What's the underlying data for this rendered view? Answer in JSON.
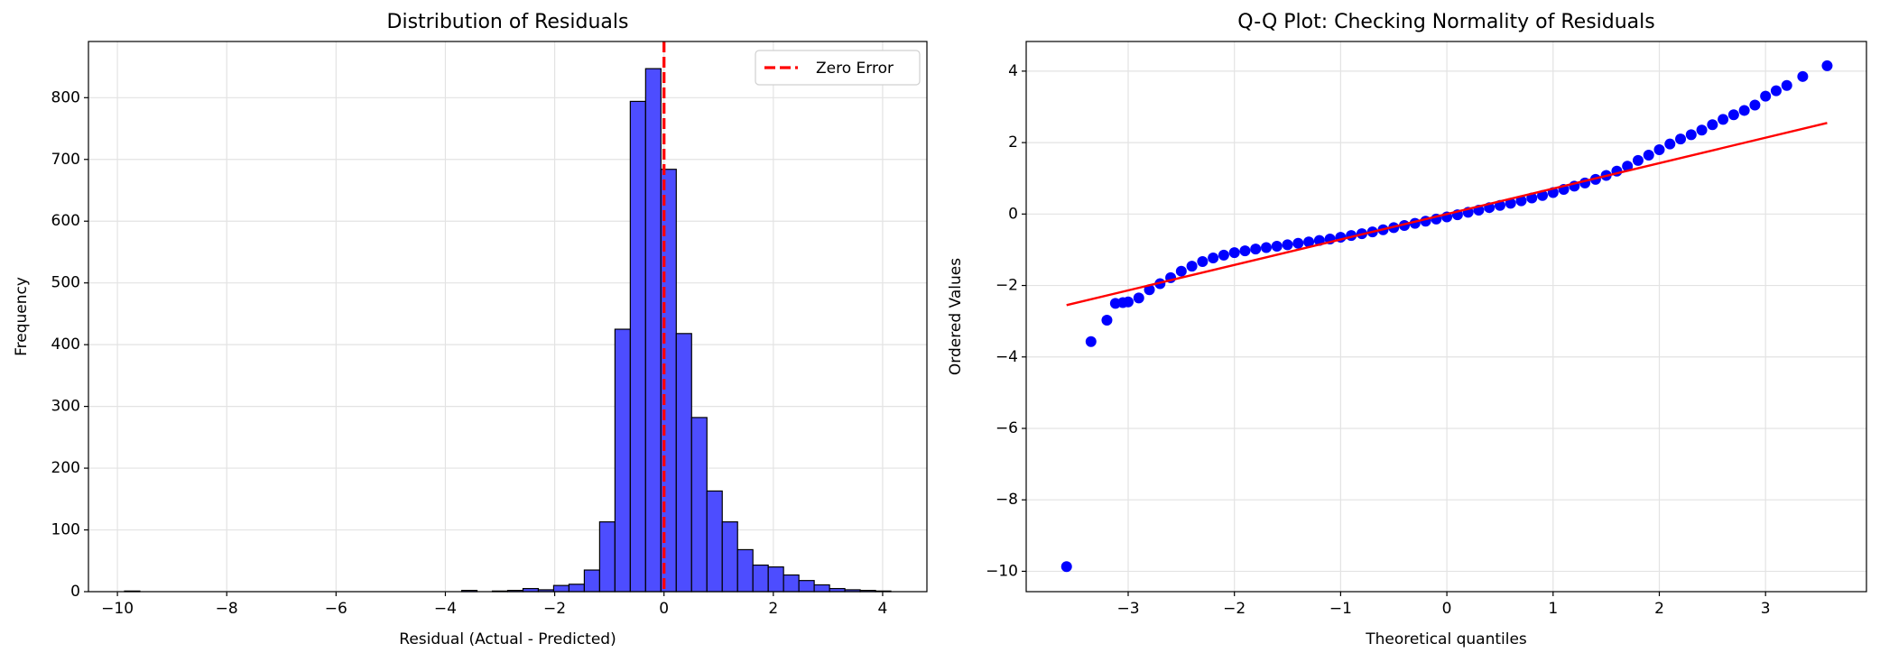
{
  "chart_data": [
    {
      "type": "histogram",
      "title": "Distribution of Residuals",
      "xlabel": "Residual (Actual - Predicted)",
      "ylabel": "Frequency",
      "bins": [
        -9.87,
        -9.5896,
        -9.3092,
        -9.0288,
        -8.7484,
        -8.468,
        -8.1876,
        -7.9072,
        -7.6268,
        -7.3464,
        -7.066,
        -6.7856,
        -6.5052,
        -6.2248,
        -5.9444,
        -5.664,
        -5.3836,
        -5.1032,
        -4.8228,
        -4.5424,
        -4.262,
        -3.9816,
        -3.7012,
        -3.4208,
        -3.1404,
        -2.86,
        -2.5796,
        -2.2992,
        -2.0188,
        -1.7384,
        -1.458,
        -1.1776,
        -0.8972,
        -0.6168,
        -0.3364,
        -0.056,
        0.2244,
        0.5048,
        0.7852,
        1.0656,
        1.346,
        1.6264,
        1.9068,
        2.1872,
        2.4676,
        2.748,
        3.0284,
        3.3088,
        3.5892,
        3.8696,
        4.15
      ],
      "counts": [
        1,
        0,
        0,
        0,
        0,
        0,
        0,
        0,
        0,
        0,
        0,
        0,
        0,
        0,
        0,
        0,
        0,
        0,
        0,
        0,
        0,
        0,
        2,
        0,
        1,
        2,
        5,
        3,
        10,
        12,
        35,
        113,
        425,
        794,
        847,
        684,
        418,
        282,
        163,
        113,
        68,
        43,
        40,
        27,
        18,
        11,
        5,
        3,
        2,
        1
      ],
      "color": "#4d4dff",
      "edgecolor": "#000000",
      "vline": {
        "value": 0,
        "name": "Zero Error",
        "color": "#ff0000"
      },
      "legend": "upper right",
      "xlim": [
        -10.53,
        4.81
      ],
      "ylim": [
        0,
        891
      ],
      "xticks": [
        {
          "value": -10,
          "label": "−10"
        },
        {
          "value": -8,
          "label": "−8"
        },
        {
          "value": -6,
          "label": "−6"
        },
        {
          "value": -4,
          "label": "−4"
        },
        {
          "value": -2,
          "label": "−2"
        },
        0,
        2,
        4
      ],
      "yticks": [
        0,
        100,
        200,
        300,
        400,
        500,
        600,
        700,
        800
      ],
      "grid": true
    },
    {
      "type": "scatter",
      "title": "Q-Q Plot: Checking Normality of Residuals",
      "xlabel": "Theoretical quantiles",
      "ylabel": "Ordered Values",
      "x": [
        -3.58,
        -3.35,
        -3.2,
        -3.12,
        -3.05,
        -3.0,
        -2.9,
        -2.8,
        -2.7,
        -2.6,
        -2.5,
        -2.4,
        -2.3,
        -2.2,
        -2.1,
        -2.0,
        -1.9,
        -1.8,
        -1.7,
        -1.6,
        -1.5,
        -1.4,
        -1.3,
        -1.2,
        -1.1,
        -1.0,
        -0.9,
        -0.8,
        -0.7,
        -0.6,
        -0.5,
        -0.4,
        -0.3,
        -0.2,
        -0.1,
        0.0,
        0.1,
        0.2,
        0.3,
        0.4,
        0.5,
        0.6,
        0.7,
        0.8,
        0.9,
        1.0,
        1.1,
        1.2,
        1.3,
        1.4,
        1.5,
        1.6,
        1.7,
        1.8,
        1.9,
        2.0,
        2.1,
        2.2,
        2.3,
        2.4,
        2.5,
        2.6,
        2.7,
        2.8,
        2.9,
        3.0,
        3.1,
        3.2,
        3.35,
        3.58
      ],
      "y": [
        -9.87,
        -3.57,
        -2.97,
        -2.5,
        -2.48,
        -2.46,
        -2.35,
        -2.12,
        -1.95,
        -1.78,
        -1.6,
        -1.46,
        -1.33,
        -1.23,
        -1.15,
        -1.08,
        -1.03,
        -0.98,
        -0.94,
        -0.9,
        -0.86,
        -0.82,
        -0.78,
        -0.74,
        -0.7,
        -0.65,
        -0.6,
        -0.55,
        -0.5,
        -0.44,
        -0.38,
        -0.32,
        -0.26,
        -0.2,
        -0.14,
        -0.08,
        -0.02,
        0.05,
        0.11,
        0.18,
        0.24,
        0.3,
        0.37,
        0.45,
        0.52,
        0.6,
        0.69,
        0.78,
        0.87,
        0.97,
        1.08,
        1.2,
        1.34,
        1.5,
        1.65,
        1.8,
        1.96,
        2.1,
        2.22,
        2.35,
        2.5,
        2.65,
        2.78,
        2.9,
        3.05,
        3.3,
        3.45,
        3.6,
        3.85,
        4.15
      ],
      "color": "#0000ff",
      "fit_line": {
        "x": [
          -3.58,
          3.58
        ],
        "y": [
          -2.55,
          2.55
        ],
        "color": "#ff0000"
      },
      "xlim": [
        -3.96,
        3.95
      ],
      "ylim": [
        -10.57,
        4.83
      ],
      "xticks": [
        {
          "value": -3,
          "label": "−3"
        },
        {
          "value": -2,
          "label": "−2"
        },
        {
          "value": -1,
          "label": "−1"
        },
        0,
        1,
        2,
        3
      ],
      "yticks": [
        {
          "value": -10,
          "label": "−10"
        },
        {
          "value": -8,
          "label": "−8"
        },
        {
          "value": -6,
          "label": "−6"
        },
        {
          "value": -4,
          "label": "−4"
        },
        {
          "value": -2,
          "label": "−2"
        },
        0,
        2,
        4
      ],
      "grid": true
    }
  ]
}
